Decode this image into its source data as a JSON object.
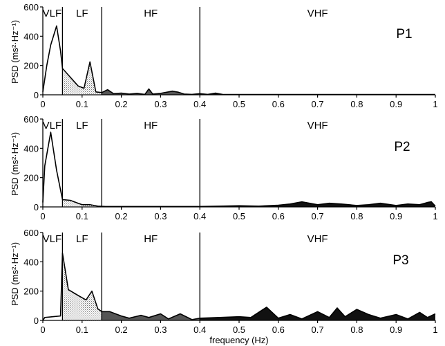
{
  "chart_data": [
    {
      "type": "area",
      "panel_label": "P1",
      "ylabel": "PSD (ms²·Hz⁻¹)",
      "xlim": [
        0,
        1
      ],
      "ylim": [
        0,
        600
      ],
      "x_ticks": [
        "0",
        "0.1",
        "0.2",
        "0.3",
        "0.4",
        "0.5",
        "0.6",
        "0.7",
        "0.8",
        "0.9",
        "1"
      ],
      "y_ticks": [
        "0",
        "200",
        "400",
        "600"
      ],
      "bands": [
        {
          "label": "VLF",
          "start": 0,
          "end": 0.05
        },
        {
          "label": "LF",
          "start": 0.05,
          "end": 0.15
        },
        {
          "label": "HF",
          "start": 0.15,
          "end": 0.4
        },
        {
          "label": "VHF",
          "start": 0.4,
          "end": 1.0
        }
      ],
      "series": [
        {
          "x": [
            0,
            0.01,
            0.02,
            0.035,
            0.045,
            0.05,
            0.07,
            0.09,
            0.105,
            0.12,
            0.135,
            0.15,
            0.165,
            0.18,
            0.2,
            0.22,
            0.24,
            0.26,
            0.27,
            0.28,
            0.3,
            0.32,
            0.33,
            0.345,
            0.36,
            0.38,
            0.4,
            0.42,
            0.44,
            0.46,
            0.5,
            0.6,
            0.7,
            0.8,
            0.9,
            1.0
          ],
          "y": [
            20,
            200,
            340,
            470,
            300,
            180,
            120,
            60,
            45,
            225,
            20,
            15,
            35,
            8,
            12,
            5,
            10,
            3,
            40,
            5,
            10,
            20,
            25,
            18,
            5,
            3,
            8,
            3,
            12,
            2,
            2,
            2,
            2,
            2,
            2,
            2
          ]
        }
      ]
    },
    {
      "type": "area",
      "panel_label": "P2",
      "ylabel": "PSD (ms²·Hz⁻¹)",
      "xlim": [
        0,
        1
      ],
      "ylim": [
        0,
        600
      ],
      "x_ticks": [
        "0",
        "0.1",
        "0.2",
        "0.3",
        "0.4",
        "0.5",
        "0.6",
        "0.7",
        "0.8",
        "0.9",
        "1"
      ],
      "y_ticks": [
        "0",
        "200",
        "400",
        "600"
      ],
      "bands": [
        {
          "label": "VLF",
          "start": 0,
          "end": 0.05
        },
        {
          "label": "LF",
          "start": 0.05,
          "end": 0.15
        },
        {
          "label": "HF",
          "start": 0.15,
          "end": 0.4
        },
        {
          "label": "VHF",
          "start": 0.4,
          "end": 1.0
        }
      ],
      "series": [
        {
          "x": [
            0,
            0.005,
            0.02,
            0.035,
            0.05,
            0.07,
            0.09,
            0.1,
            0.12,
            0.14,
            0.16,
            0.2,
            0.25,
            0.3,
            0.35,
            0.4,
            0.45,
            0.5,
            0.55,
            0.6,
            0.63,
            0.66,
            0.7,
            0.73,
            0.76,
            0.8,
            0.83,
            0.86,
            0.9,
            0.93,
            0.96,
            0.98,
            0.99,
            1.0
          ],
          "y": [
            30,
            280,
            510,
            250,
            50,
            45,
            25,
            15,
            15,
            5,
            3,
            3,
            3,
            3,
            3,
            3,
            5,
            8,
            5,
            12,
            20,
            35,
            15,
            25,
            20,
            10,
            15,
            25,
            10,
            20,
            15,
            30,
            35,
            5
          ]
        }
      ]
    },
    {
      "type": "area",
      "panel_label": "P3",
      "ylabel": "PSD (ms²·Hz⁻¹)",
      "xlabel": "frequency (Hz)",
      "xlim": [
        0,
        1
      ],
      "ylim": [
        0,
        600
      ],
      "x_ticks": [
        "0",
        "0.1",
        "0.2",
        "0.3",
        "0.4",
        "0.5",
        "0.6",
        "0.7",
        "0.8",
        "0.9",
        "1"
      ],
      "y_ticks": [
        "0",
        "200",
        "400",
        "600"
      ],
      "bands": [
        {
          "label": "VLF",
          "start": 0,
          "end": 0.05
        },
        {
          "label": "LF",
          "start": 0.05,
          "end": 0.15
        },
        {
          "label": "HF",
          "start": 0.15,
          "end": 0.4
        },
        {
          "label": "VHF",
          "start": 0.4,
          "end": 1.0
        }
      ],
      "series": [
        {
          "x": [
            0,
            0.005,
            0.045,
            0.05,
            0.065,
            0.09,
            0.11,
            0.125,
            0.14,
            0.15,
            0.17,
            0.2,
            0.22,
            0.25,
            0.27,
            0.3,
            0.32,
            0.35,
            0.38,
            0.4,
            0.45,
            0.5,
            0.53,
            0.57,
            0.6,
            0.63,
            0.66,
            0.7,
            0.73,
            0.75,
            0.77,
            0.8,
            0.83,
            0.86,
            0.9,
            0.93,
            0.96,
            0.98,
            1.0
          ],
          "y": [
            0,
            20,
            30,
            460,
            210,
            170,
            140,
            200,
            80,
            60,
            60,
            30,
            15,
            35,
            20,
            45,
            10,
            45,
            5,
            15,
            20,
            25,
            20,
            90,
            15,
            40,
            10,
            60,
            20,
            85,
            25,
            75,
            40,
            15,
            40,
            10,
            55,
            20,
            45
          ]
        }
      ]
    }
  ]
}
